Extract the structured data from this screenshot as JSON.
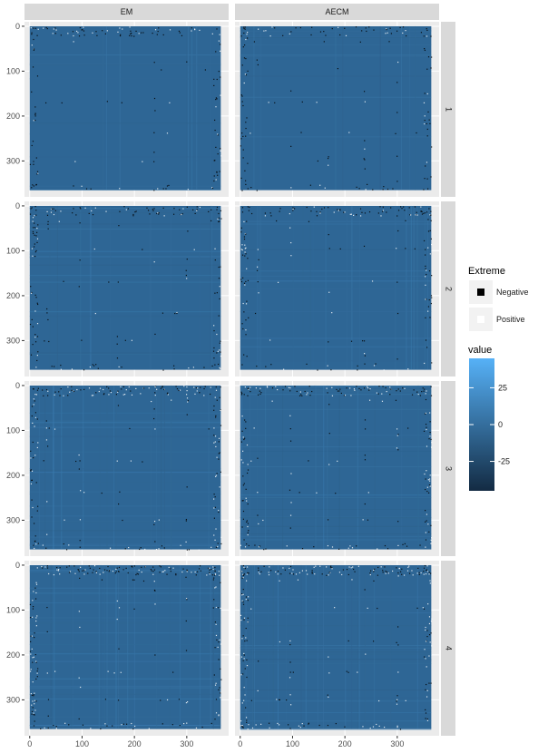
{
  "chart_data": {
    "type": "heatmap",
    "facet_columns": [
      "EM",
      "AECM"
    ],
    "facet_rows": [
      "1",
      "2",
      "3",
      "4"
    ],
    "x_ticks": [
      0,
      100,
      200,
      300
    ],
    "y_ticks": [
      0,
      100,
      200,
      300
    ],
    "xlim": [
      -10,
      380
    ],
    "ylim": [
      -10,
      380
    ],
    "y_reversed": true,
    "matrix_size": 365,
    "legend_extreme": {
      "title": "Extreme",
      "items": [
        {
          "label": "Negative",
          "color": "#000000"
        },
        {
          "label": "Positive",
          "color": "#ffffff"
        }
      ]
    },
    "legend_value": {
      "title": "value",
      "ticks": [
        25,
        0,
        -25
      ],
      "range": [
        -45,
        45
      ],
      "low_color": "#132b43",
      "high_color": "#56b1f7"
    },
    "tile_base_color": "#2e6695",
    "panel_background": "#ebebeb",
    "strip_background": "#d9d9d9"
  }
}
